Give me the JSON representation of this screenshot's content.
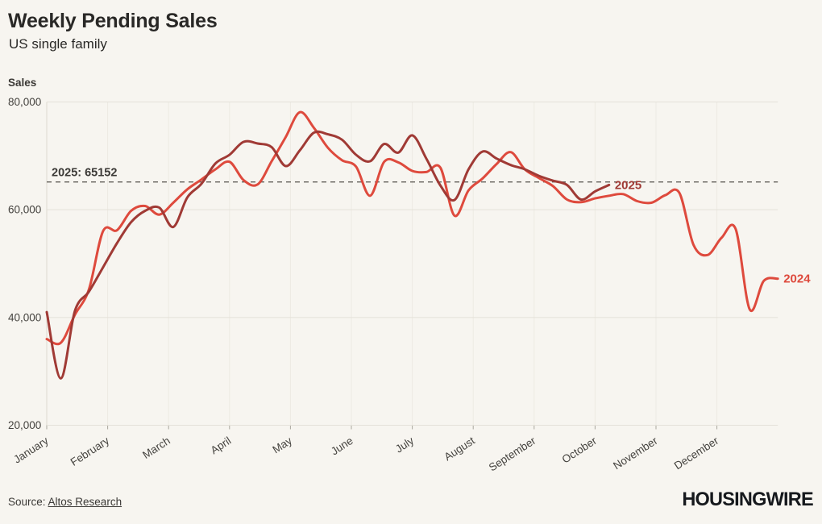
{
  "header": {
    "title": "Weekly Pending Sales",
    "subtitle": "US single family"
  },
  "footer": {
    "source_prefix": "Source: ",
    "source_link": "Altos Research",
    "logo": "HOUSINGWIRE"
  },
  "colors": {
    "background": "#f7f5f0",
    "line_2024": "#de4a3d",
    "line_2025": "#a03a35",
    "grid_horizontal": "#e4e1d9",
    "grid_vertical": "#edeae3",
    "axis_spine": "#ddd9d1",
    "tick": "#a9a69e",
    "reference_line": "#55524c",
    "annotation_text": "#3b3936"
  },
  "chart_data": {
    "type": "line",
    "title": "Weekly Pending Sales",
    "subtitle": "US single family",
    "ylabel": "Sales",
    "xlabel": "",
    "ylim": [
      20000,
      80000
    ],
    "grid": true,
    "x_unit": "week",
    "months": [
      "January",
      "February",
      "March",
      "April",
      "May",
      "June",
      "July",
      "August",
      "September",
      "October",
      "November",
      "December"
    ],
    "yticks": [
      {
        "value": 20000,
        "label": "20,000"
      },
      {
        "value": 40000,
        "label": "40,000"
      },
      {
        "value": 60000,
        "label": "60,000"
      },
      {
        "value": 80000,
        "label": "80,000"
      }
    ],
    "reference_line": {
      "label": "2025: 65152",
      "value": 65152
    },
    "series": [
      {
        "name": "2024",
        "color": "#de4a3d",
        "values": [
          36000,
          35300,
          40500,
          45200,
          56000,
          56200,
          59800,
          60700,
          59100,
          61300,
          63800,
          65600,
          67500,
          68900,
          65500,
          64700,
          69000,
          73500,
          78100,
          75200,
          71500,
          69200,
          68000,
          62600,
          68900,
          68800,
          67200,
          67000,
          67800,
          58900,
          63600,
          65800,
          68500,
          70700,
          67500,
          65900,
          64400,
          61900,
          61400,
          62100,
          62600,
          62900,
          61600,
          61300,
          62700,
          63100,
          53500,
          51600,
          54800,
          56400,
          41500,
          46800,
          47200
        ]
      },
      {
        "name": "2025",
        "color": "#a03a35",
        "values": [
          41000,
          28700,
          41200,
          44800,
          49300,
          53800,
          57700,
          59800,
          60400,
          56800,
          62300,
          64800,
          68600,
          70200,
          72600,
          72300,
          71600,
          68100,
          71000,
          74300,
          74000,
          73000,
          70200,
          69000,
          72200,
          70600,
          73800,
          69500,
          64500,
          61800,
          67500,
          70800,
          69500,
          68300,
          67500,
          66300,
          65400,
          64600,
          61900,
          63400,
          64600
        ]
      }
    ]
  }
}
